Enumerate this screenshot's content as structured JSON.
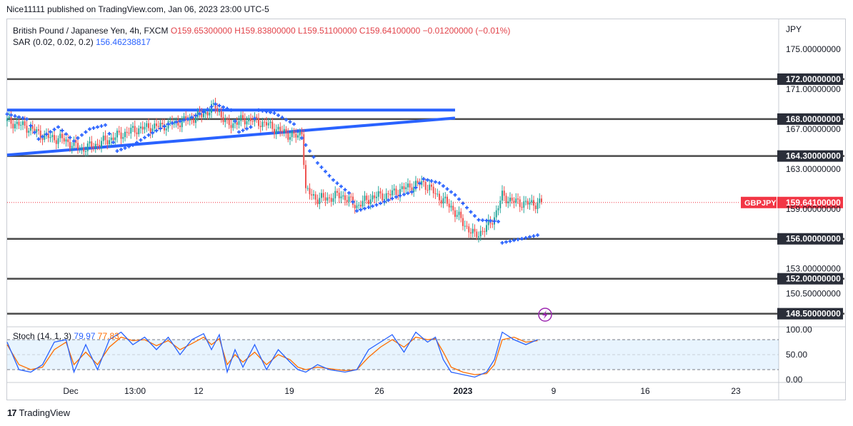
{
  "publisher_line": "Nice11111 published on TradingView.com, Jan 06, 2023 23:00 UTC-5",
  "legend": {
    "symbol": "British Pound / Japanese Yen, 4h, FXCM",
    "ohlc": "O159.65300000  H159.83800000  L159.51100000  C159.64100000  −0.01200000 (−0.01%)",
    "sar_label": "SAR (0.02, 0.02, 0.2)",
    "sar_value": "156.46238817"
  },
  "stoch_legend": {
    "label": "Stoch (14, 1, 3)",
    "k_value": "79.97",
    "d_value": "77.83"
  },
  "footer": {
    "brand": "TradingView",
    "logo_text": "17"
  },
  "colors": {
    "up": "#26a69a",
    "down": "#ef5350",
    "sar": "#2962ff",
    "trendline": "#2962ff",
    "level": "#4a4a4a",
    "stoch_k": "#2962ff",
    "stoch_d": "#ff6d00",
    "price_tag": "#f23645"
  },
  "chart_data": {
    "type": "candlestick",
    "price_axis": {
      "currency": "JPY",
      "range": [
        147.4,
        178.0
      ],
      "ticks": [
        "175.00000000",
        "171.00000000",
        "167.00000000",
        "163.00000000",
        "159.00000000",
        "153.00000000",
        "150.50000000"
      ]
    },
    "time_axis": {
      "ticks": [
        "Dec",
        "13:00",
        "12",
        "19",
        "26",
        "2023",
        "9",
        "16",
        "23"
      ]
    },
    "horizontal_levels": [
      {
        "value": 172.0,
        "label": "172.00000000"
      },
      {
        "value": 168.0,
        "label": "168.00000000"
      },
      {
        "value": 164.3,
        "label": "164.30000000"
      },
      {
        "value": 156.0,
        "label": "156.00000000"
      },
      {
        "value": 152.0,
        "label": "152.00000000"
      },
      {
        "value": 148.5,
        "label": "148.50000000"
      }
    ],
    "current_price": {
      "symbol": "GBPJPY",
      "value": 159.641,
      "label": "159.64100000"
    },
    "trendlines": [
      {
        "from": {
          "bar": 0,
          "price": 168.9
        },
        "to": {
          "bar": 228,
          "price": 168.9
        }
      },
      {
        "from": {
          "bar": 0,
          "price": 164.4
        },
        "to": {
          "bar": 228,
          "price": 168.1
        }
      }
    ],
    "close_path": [
      [
        0,
        167.8
      ],
      [
        10,
        167.2
      ],
      [
        20,
        166.2
      ],
      [
        28,
        166.0
      ],
      [
        38,
        165.0
      ],
      [
        46,
        165.5
      ],
      [
        56,
        166.3
      ],
      [
        66,
        167.0
      ],
      [
        78,
        167.3
      ],
      [
        90,
        167.8
      ],
      [
        100,
        168.5
      ],
      [
        106,
        169.3
      ],
      [
        112,
        167.4
      ],
      [
        122,
        168.0
      ],
      [
        132,
        167.5
      ],
      [
        140,
        166.7
      ],
      [
        148,
        166.2
      ],
      [
        150,
        166.9
      ],
      [
        152,
        160.8
      ],
      [
        158,
        160.0
      ],
      [
        164,
        160.1
      ],
      [
        170,
        160.4
      ],
      [
        178,
        159.3
      ],
      [
        186,
        160.2
      ],
      [
        194,
        160.4
      ],
      [
        200,
        160.9
      ],
      [
        206,
        161.3
      ],
      [
        212,
        161.6
      ],
      [
        218,
        160.5
      ],
      [
        226,
        159.2
      ],
      [
        232,
        157.6
      ],
      [
        238,
        156.3
      ],
      [
        244,
        157.1
      ],
      [
        248,
        158.2
      ],
      [
        252,
        160.3
      ],
      [
        258,
        159.7
      ],
      [
        266,
        159.5
      ],
      [
        272,
        159.64
      ]
    ],
    "sar_path": [
      [
        0,
        168.5
      ],
      [
        10,
        168.0
      ],
      [
        16,
        166.0
      ],
      [
        26,
        167.2
      ],
      [
        34,
        165.8
      ],
      [
        42,
        167.0
      ],
      [
        50,
        167.4
      ],
      [
        56,
        164.8
      ],
      [
        64,
        165.4
      ],
      [
        72,
        166.4
      ],
      [
        82,
        167.5
      ],
      [
        92,
        168.0
      ],
      [
        100,
        168.7
      ],
      [
        106,
        169.5
      ],
      [
        114,
        168.9
      ],
      [
        118,
        166.7
      ],
      [
        124,
        167.2
      ],
      [
        128,
        168.9
      ],
      [
        136,
        168.6
      ],
      [
        146,
        167.5
      ],
      [
        152,
        165.4
      ],
      [
        158,
        163.6
      ],
      [
        166,
        161.9
      ],
      [
        174,
        160.6
      ],
      [
        178,
        158.8
      ],
      [
        188,
        159.4
      ],
      [
        198,
        160.2
      ],
      [
        206,
        160.7
      ],
      [
        212,
        162.0
      ],
      [
        220,
        161.6
      ],
      [
        228,
        160.4
      ],
      [
        236,
        158.7
      ],
      [
        240,
        157.9
      ],
      [
        252,
        157.7
      ],
      [
        252,
        155.6
      ],
      [
        264,
        156.1
      ],
      [
        272,
        156.46
      ]
    ],
    "stochastic": {
      "k_value": 79.97,
      "d_value": 77.83,
      "ticks": [
        "100.00",
        "50.00",
        "0.00"
      ],
      "band": [
        20,
        80
      ],
      "k_path": [
        [
          0,
          75
        ],
        [
          6,
          20
        ],
        [
          12,
          15
        ],
        [
          18,
          30
        ],
        [
          24,
          75
        ],
        [
          30,
          80
        ],
        [
          34,
          15
        ],
        [
          40,
          70
        ],
        [
          46,
          20
        ],
        [
          52,
          80
        ],
        [
          58,
          95
        ],
        [
          64,
          70
        ],
        [
          70,
          85
        ],
        [
          76,
          60
        ],
        [
          82,
          85
        ],
        [
          88,
          50
        ],
        [
          94,
          80
        ],
        [
          100,
          92
        ],
        [
          104,
          60
        ],
        [
          108,
          90
        ],
        [
          112,
          15
        ],
        [
          116,
          60
        ],
        [
          120,
          25
        ],
        [
          126,
          70
        ],
        [
          132,
          20
        ],
        [
          138,
          60
        ],
        [
          144,
          35
        ],
        [
          148,
          20
        ],
        [
          152,
          15
        ],
        [
          158,
          30
        ],
        [
          164,
          20
        ],
        [
          172,
          15
        ],
        [
          178,
          20
        ],
        [
          184,
          60
        ],
        [
          190,
          75
        ],
        [
          196,
          90
        ],
        [
          202,
          55
        ],
        [
          208,
          95
        ],
        [
          214,
          75
        ],
        [
          218,
          85
        ],
        [
          222,
          40
        ],
        [
          226,
          15
        ],
        [
          232,
          10
        ],
        [
          238,
          5
        ],
        [
          244,
          15
        ],
        [
          248,
          40
        ],
        [
          252,
          95
        ],
        [
          258,
          80
        ],
        [
          264,
          70
        ],
        [
          270,
          80
        ]
      ],
      "d_path": [
        [
          0,
          70
        ],
        [
          6,
          30
        ],
        [
          12,
          20
        ],
        [
          18,
          25
        ],
        [
          24,
          60
        ],
        [
          30,
          75
        ],
        [
          34,
          30
        ],
        [
          40,
          55
        ],
        [
          46,
          30
        ],
        [
          52,
          65
        ],
        [
          58,
          85
        ],
        [
          64,
          78
        ],
        [
          70,
          80
        ],
        [
          76,
          68
        ],
        [
          82,
          78
        ],
        [
          88,
          60
        ],
        [
          94,
          72
        ],
        [
          100,
          85
        ],
        [
          104,
          70
        ],
        [
          108,
          82
        ],
        [
          112,
          30
        ],
        [
          116,
          50
        ],
        [
          120,
          35
        ],
        [
          126,
          55
        ],
        [
          132,
          30
        ],
        [
          138,
          50
        ],
        [
          144,
          40
        ],
        [
          148,
          25
        ],
        [
          152,
          20
        ],
        [
          158,
          25
        ],
        [
          164,
          22
        ],
        [
          172,
          18
        ],
        [
          178,
          20
        ],
        [
          184,
          45
        ],
        [
          190,
          65
        ],
        [
          196,
          80
        ],
        [
          202,
          65
        ],
        [
          208,
          85
        ],
        [
          214,
          80
        ],
        [
          218,
          82
        ],
        [
          222,
          55
        ],
        [
          226,
          25
        ],
        [
          232,
          15
        ],
        [
          238,
          10
        ],
        [
          244,
          12
        ],
        [
          248,
          30
        ],
        [
          252,
          80
        ],
        [
          258,
          85
        ],
        [
          264,
          75
        ],
        [
          270,
          77.83
        ]
      ]
    }
  }
}
